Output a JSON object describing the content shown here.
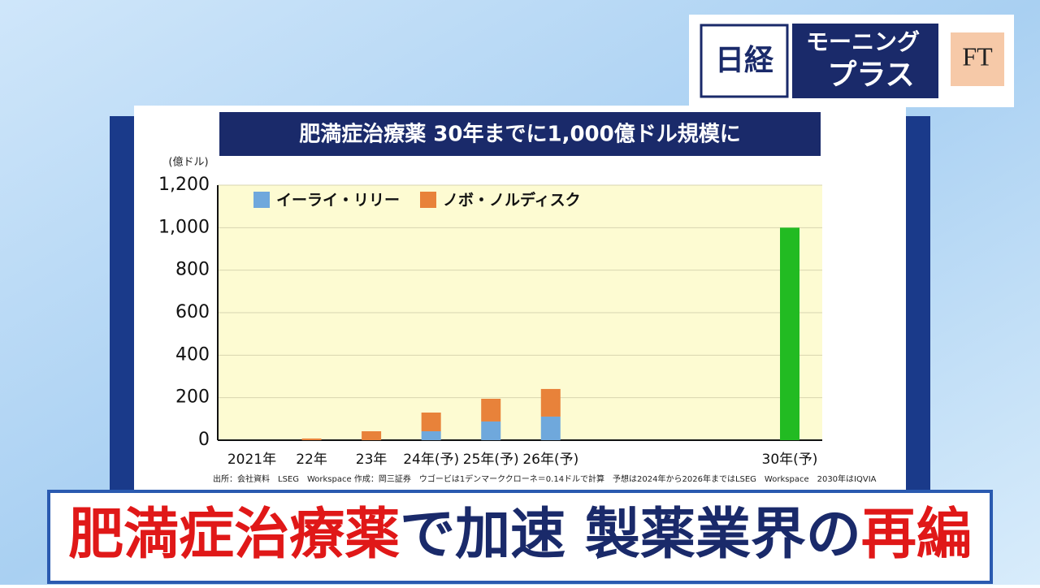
{
  "logo": {
    "nikkei": "日経",
    "show_line1": "モーニング",
    "show_line2": "プラス",
    "ft": "FT"
  },
  "chart_data": {
    "type": "bar",
    "stacked": true,
    "title": "肥満症治療薬 30年までに1,000億ドル規模に",
    "y_label": "(億ドル)",
    "categories": [
      "2021年",
      "22年",
      "23年",
      "24年(予)",
      "25年(予)",
      "26年(予)",
      null,
      null,
      null,
      "30年(予)"
    ],
    "series": [
      {
        "name": "イーライ・リリー",
        "color": "#6fa8dc",
        "values": [
          0,
          0,
          0,
          42,
          88,
          111,
          null,
          null,
          null,
          null
        ]
      },
      {
        "name": "ノボ・ノルディスク",
        "color": "#e8823a",
        "values": [
          0,
          8,
          42,
          88,
          107,
          130,
          null,
          null,
          null,
          null
        ]
      },
      {
        "color": "#22bb22",
        "values": [
          null,
          null,
          null,
          null,
          null,
          null,
          null,
          null,
          null,
          1000
        ]
      }
    ],
    "ylim": [
      0,
      1200
    ],
    "yticks": [
      0,
      200,
      400,
      600,
      800,
      {
        "value": 1000,
        "label": "1,000"
      },
      {
        "value": 1200,
        "label": "1,200"
      }
    ],
    "grid": true,
    "legend": "top-left",
    "source": "出所：会社資料　LSEG　Workspace 作成：岡三証券　ウゴービは1デンマーククローネ＝0.14ドルで計算　予想は2024年から2026年まではLSEG　Workspace　2030年はIQVIA"
  },
  "headline": {
    "parts": [
      {
        "text": "肥満症治療薬",
        "color": "#e01818"
      },
      {
        "text": "で加速 製薬業界の",
        "color": "#1a2a6a"
      },
      {
        "text": "再編",
        "color": "#e01818"
      }
    ]
  }
}
